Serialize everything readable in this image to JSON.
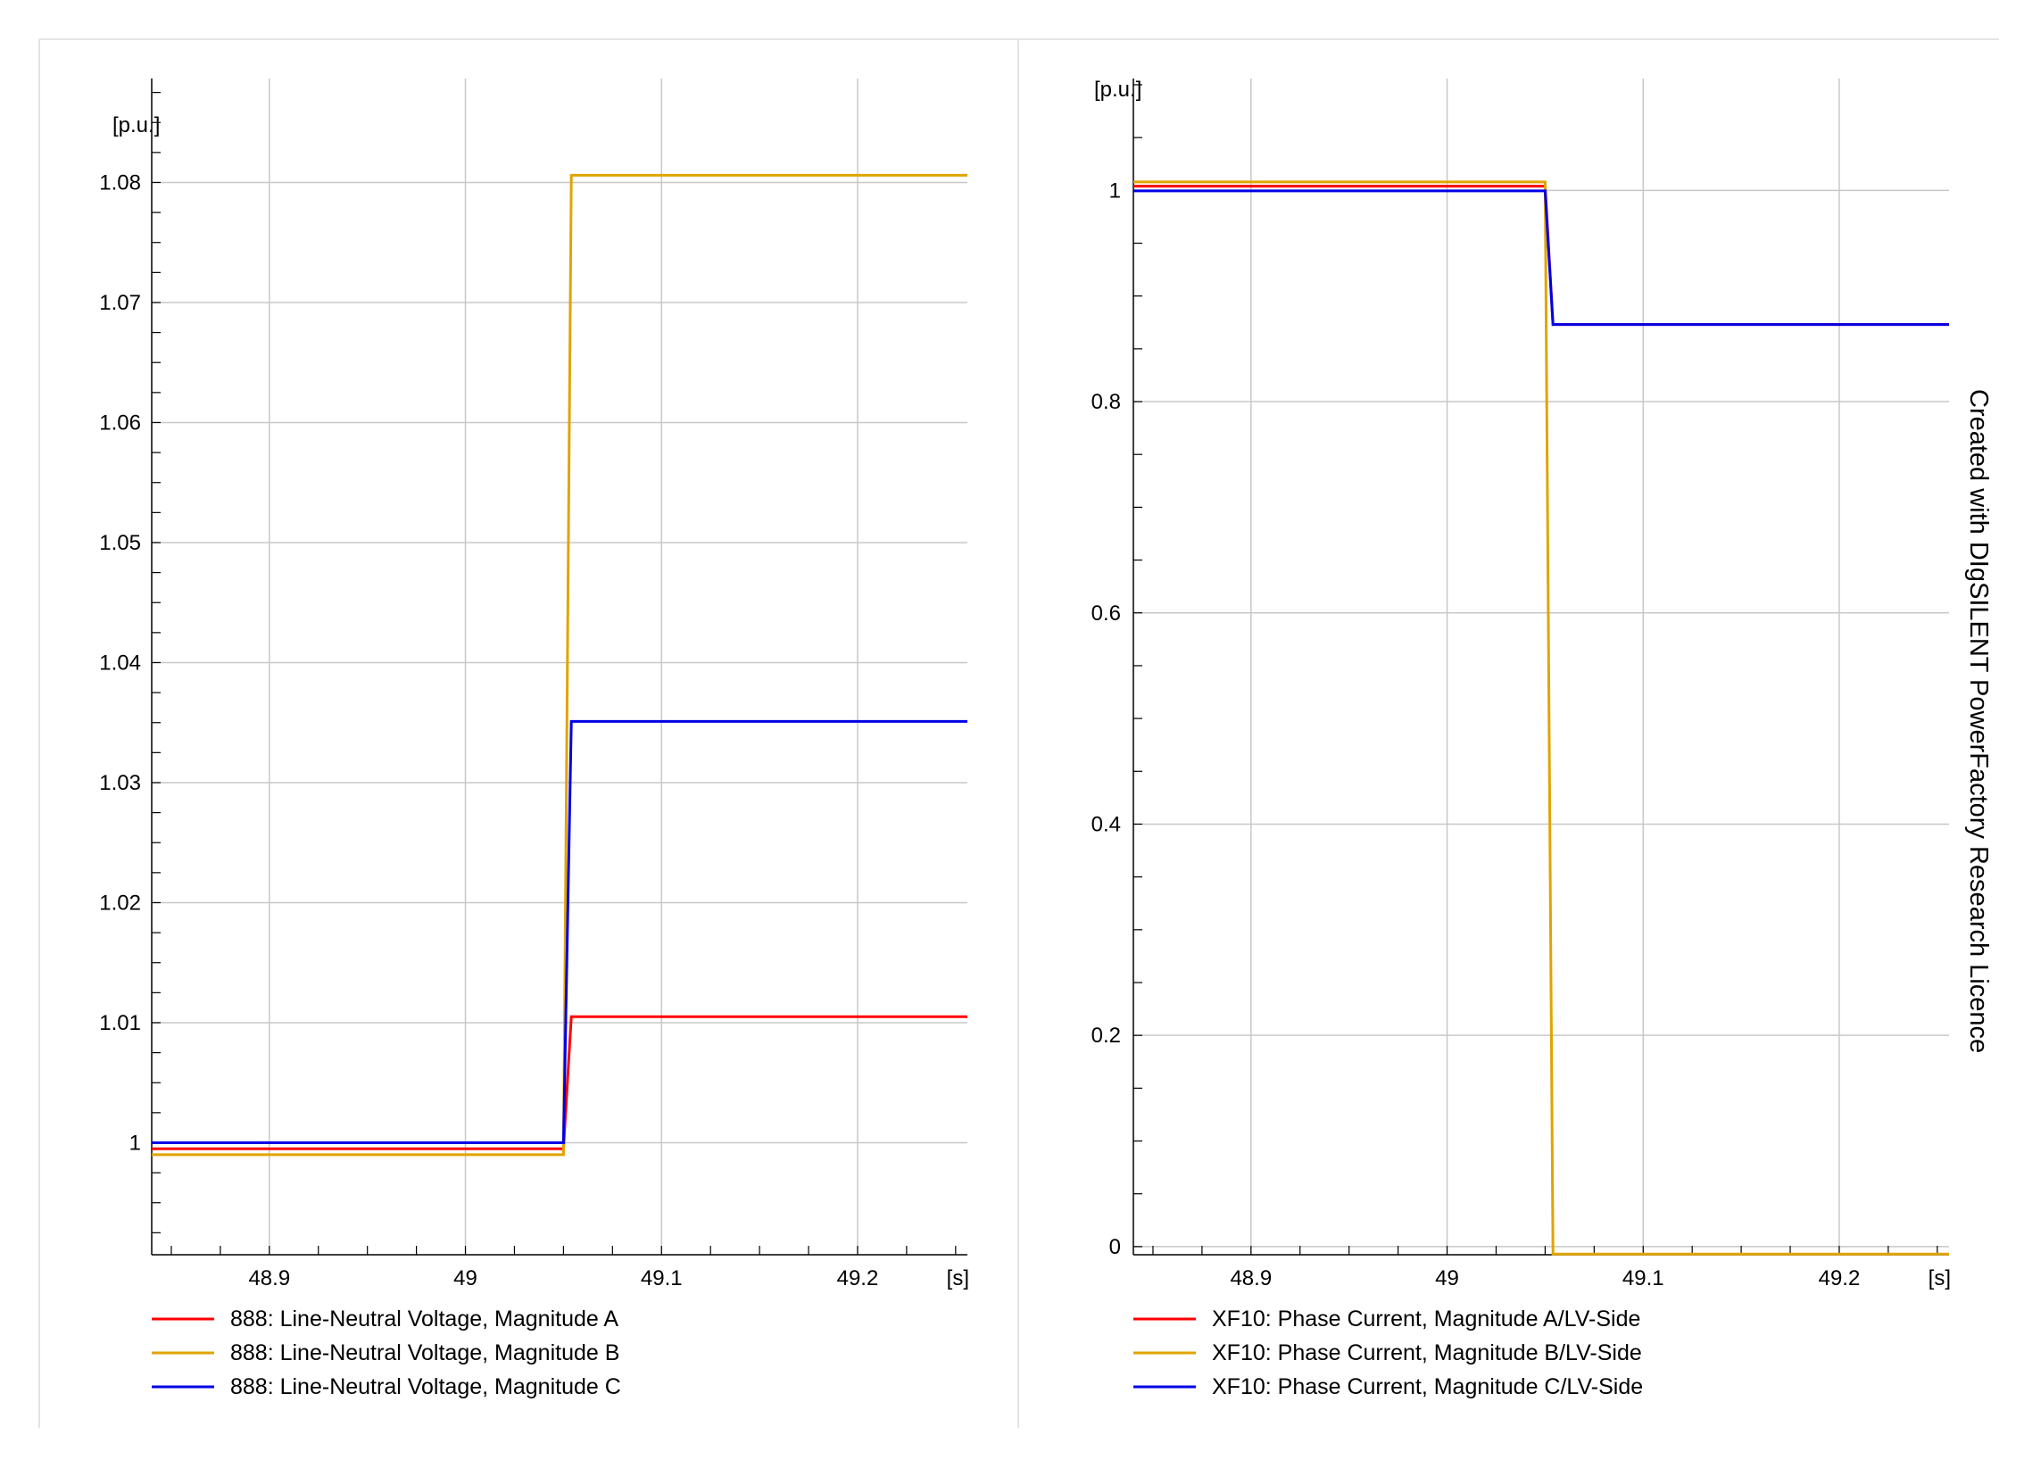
{
  "watermark": "Created with DIgSILENT PowerFactory Research Licence",
  "colors": {
    "phase_a": "#ff0000",
    "phase_b": "#e0a400",
    "phase_c": "#0000e6",
    "grid": "#c8c8c8"
  },
  "chart_data": [
    {
      "type": "line",
      "xlabel": "[s]",
      "ylabel": "[p.u.]",
      "xlim": [
        48.84,
        49.256
      ],
      "ylim": [
        0.990667,
        1.08866
      ],
      "xticks": [
        48.9,
        49,
        49.1,
        49.2
      ],
      "xtick_labels": [
        "48.9",
        "49",
        "49.1",
        "49.2"
      ],
      "yticks": [
        1.0,
        1.01,
        1.02,
        1.03,
        1.04,
        1.05,
        1.06,
        1.07,
        1.08
      ],
      "ytick_labels": [
        "1",
        "1.01",
        "1.02",
        "1.03",
        "1.04",
        "1.05",
        "1.06",
        "1.07",
        "1.08"
      ],
      "grid": true,
      "legend_position": "bottom",
      "series": [
        {
          "name": "888: Line-Neutral Voltage, Magnitude A",
          "color": "#ff0000",
          "x": [
            48.84,
            49.05,
            49.054,
            49.256
          ],
          "y": [
            0.9995,
            0.9995,
            1.0105,
            1.0105
          ]
        },
        {
          "name": "888: Line-Neutral Voltage, Magnitude B",
          "color": "#e0a400",
          "x": [
            48.84,
            49.05,
            49.054,
            49.256
          ],
          "y": [
            0.999,
            0.999,
            1.0806,
            1.0806
          ]
        },
        {
          "name": "888: Line-Neutral Voltage, Magnitude C",
          "color": "#0000e6",
          "x": [
            48.84,
            49.05,
            49.054,
            49.256
          ],
          "y": [
            1.0,
            1.0,
            1.0351,
            1.0351
          ]
        }
      ]
    },
    {
      "type": "line",
      "xlabel": "[s]",
      "ylabel": "[p.u.]",
      "xlim": [
        48.84,
        49.256
      ],
      "ylim": [
        -0.0077,
        1.1059
      ],
      "xticks": [
        48.9,
        49,
        49.1,
        49.2
      ],
      "xtick_labels": [
        "48.9",
        "49",
        "49.1",
        "49.2"
      ],
      "yticks": [
        0,
        0.2,
        0.4,
        0.6,
        0.8,
        1.0
      ],
      "ytick_labels": [
        "0",
        "0.2",
        "0.4",
        "0.6",
        "0.8",
        "1"
      ],
      "grid": true,
      "legend_position": "bottom",
      "series": [
        {
          "name": "XF10: Phase Current, Magnitude A/LV-Side",
          "color": "#ff0000",
          "x": [
            48.84,
            49.05,
            49.054,
            49.256
          ],
          "y": [
            1.004,
            1.004,
            0.873,
            0.873
          ]
        },
        {
          "name": "XF10: Phase Current, Magnitude B/LV-Side",
          "color": "#e0a400",
          "x": [
            48.84,
            49.05,
            49.054,
            49.256
          ],
          "y": [
            1.008,
            1.008,
            -0.007,
            -0.007
          ]
        },
        {
          "name": "XF10: Phase Current, Magnitude C/LV-Side",
          "color": "#0000e6",
          "x": [
            48.84,
            49.05,
            49.054,
            49.256
          ],
          "y": [
            0.9995,
            0.9995,
            0.873,
            0.873
          ]
        }
      ]
    }
  ]
}
